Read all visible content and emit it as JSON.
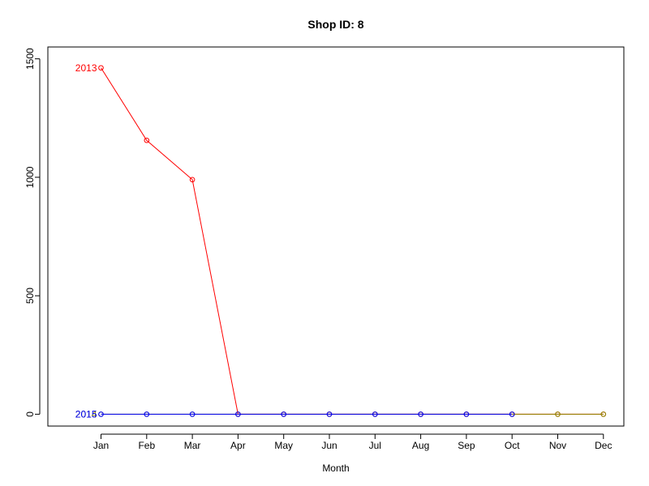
{
  "chart_data": {
    "type": "line",
    "title": "Shop ID: 8",
    "xlabel": "Month",
    "ylabel": "",
    "categories": [
      "Jan",
      "Feb",
      "Mar",
      "Apr",
      "May",
      "Jun",
      "Jul",
      "Aug",
      "Sep",
      "Oct",
      "Nov",
      "Dec"
    ],
    "ylim": [
      -50,
      1550
    ],
    "yticks": [
      0,
      500,
      1000,
      1500
    ],
    "grid": false,
    "legend": "none",
    "series": [
      {
        "name": "2013",
        "color": "#ff0000",
        "values": [
          1462,
          1156,
          990,
          0,
          0,
          0,
          0,
          0,
          0,
          0,
          0,
          0
        ]
      },
      {
        "name": "2014",
        "color": "#8b8b00",
        "values": [
          0,
          0,
          0,
          0,
          0,
          0,
          0,
          0,
          0,
          0,
          0,
          0
        ]
      },
      {
        "name": "2015",
        "color": "#0000ff",
        "values": [
          0,
          0,
          0,
          0,
          0,
          0,
          0,
          0,
          0,
          0,
          null,
          null
        ]
      }
    ]
  }
}
